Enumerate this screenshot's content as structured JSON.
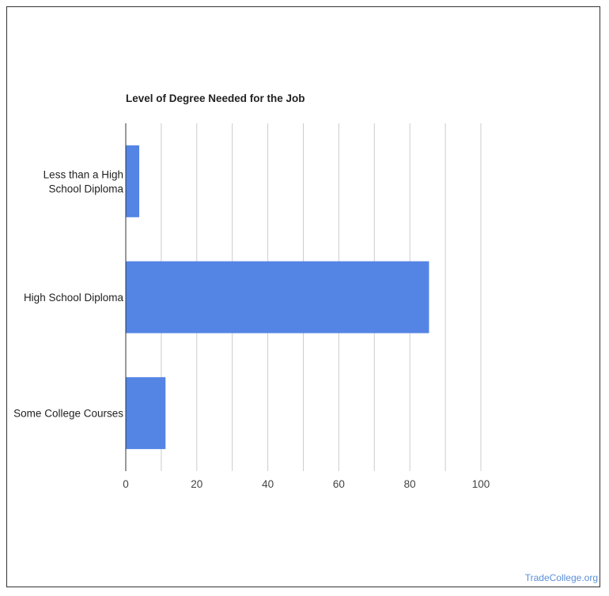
{
  "chart_data": {
    "type": "bar",
    "orientation": "horizontal",
    "title": "Level of Degree Needed for the Job",
    "categories": [
      [
        "Less than a High",
        "School Diploma"
      ],
      [
        "High School Diploma"
      ],
      [
        "Some College Courses"
      ]
    ],
    "values": [
      3.8,
      85.4,
      11.2
    ],
    "xlim": [
      0,
      100
    ],
    "xticks": [
      0,
      20,
      40,
      60,
      80,
      100
    ],
    "grid": true,
    "legend": "none",
    "bar_color": "#5484e4"
  },
  "watermark": "TradeCollege.org"
}
